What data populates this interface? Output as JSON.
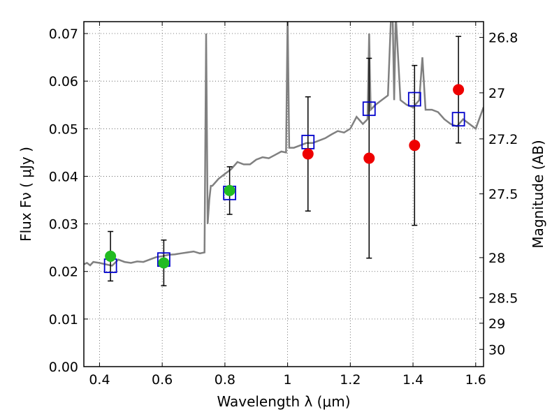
{
  "chart_data": {
    "type": "scatter",
    "xlabel": "Wavelength  λ (μm)",
    "ylabel": "Flux  Fν  ( μJy )",
    "ylabel_right": "Magnitude (AB)",
    "xlim": [
      0.35,
      1.625
    ],
    "ylim": [
      0.0,
      0.0725
    ],
    "grid": true,
    "x_ticks": [
      {
        "v": 0.4,
        "label": "0.4"
      },
      {
        "v": 0.6,
        "label": "0.6"
      },
      {
        "v": 0.8,
        "label": "0.8"
      },
      {
        "v": 1.0,
        "label": "1"
      },
      {
        "v": 1.2,
        "label": "1.2"
      },
      {
        "v": 1.4,
        "label": "1.4"
      },
      {
        "v": 1.6,
        "label": "1.6"
      }
    ],
    "y_ticks": [
      {
        "v": 0.0,
        "label": "0.00"
      },
      {
        "v": 0.01,
        "label": "0.01"
      },
      {
        "v": 0.02,
        "label": "0.02"
      },
      {
        "v": 0.03,
        "label": "0.03"
      },
      {
        "v": 0.04,
        "label": "0.04"
      },
      {
        "v": 0.05,
        "label": "0.05"
      },
      {
        "v": 0.06,
        "label": "0.06"
      },
      {
        "v": 0.07,
        "label": "0.07"
      }
    ],
    "right_ticks": [
      {
        "label": "26.8",
        "mag": 26.8
      },
      {
        "label": "27",
        "mag": 27.0
      },
      {
        "label": "27.2",
        "mag": 27.2
      },
      {
        "label": "27.5",
        "mag": 27.5
      },
      {
        "label": "28",
        "mag": 28.0
      },
      {
        "label": "28.5",
        "mag": 28.5
      },
      {
        "label": "29",
        "mag": 29.0
      },
      {
        "label": "30",
        "mag": 30.0
      }
    ],
    "series": [
      {
        "kind": "line",
        "color": "#808080",
        "x": [
          0.35,
          0.36,
          0.37,
          0.38,
          0.4,
          0.42,
          0.44,
          0.46,
          0.48,
          0.5,
          0.52,
          0.54,
          0.56,
          0.58,
          0.6,
          0.62,
          0.64,
          0.66,
          0.68,
          0.7,
          0.72,
          0.735,
          0.74,
          0.745,
          0.75,
          0.755,
          0.76,
          0.78,
          0.8,
          0.82,
          0.84,
          0.86,
          0.88,
          0.9,
          0.92,
          0.94,
          0.96,
          0.98,
          0.995,
          1.0,
          1.005,
          1.02,
          1.04,
          1.06,
          1.08,
          1.1,
          1.12,
          1.14,
          1.16,
          1.18,
          1.2,
          1.22,
          1.24,
          1.255,
          1.26,
          1.265,
          1.28,
          1.3,
          1.32,
          1.33,
          1.335,
          1.34,
          1.345,
          1.36,
          1.38,
          1.4,
          1.42,
          1.43,
          1.44,
          1.46,
          1.48,
          1.5,
          1.52,
          1.54,
          1.56,
          1.58,
          1.6,
          1.625
        ],
        "y": [
          0.0215,
          0.0218,
          0.0213,
          0.022,
          0.0218,
          0.0215,
          0.0212,
          0.0225,
          0.022,
          0.0218,
          0.0221,
          0.022,
          0.0225,
          0.023,
          0.0232,
          0.0235,
          0.0236,
          0.0238,
          0.024,
          0.0242,
          0.0238,
          0.024,
          0.07,
          0.03,
          0.035,
          0.038,
          0.038,
          0.0395,
          0.0405,
          0.0415,
          0.043,
          0.0425,
          0.0425,
          0.0435,
          0.044,
          0.0438,
          0.0445,
          0.0452,
          0.045,
          0.074,
          0.046,
          0.046,
          0.0465,
          0.047,
          0.047,
          0.0475,
          0.048,
          0.0488,
          0.0495,
          0.0492,
          0.05,
          0.0525,
          0.051,
          0.052,
          0.07,
          0.054,
          0.055,
          0.056,
          0.057,
          0.074,
          0.074,
          0.056,
          0.074,
          0.056,
          0.055,
          0.0545,
          0.056,
          0.065,
          0.054,
          0.054,
          0.0535,
          0.052,
          0.051,
          0.0505,
          0.052,
          0.051,
          0.05,
          0.0545
        ]
      },
      {
        "kind": "points",
        "marker": "square",
        "color": "#0000cc",
        "x": [
          0.435,
          0.605,
          0.815,
          1.065,
          1.26,
          1.405,
          1.545
        ],
        "y": [
          0.0212,
          0.0225,
          0.0365,
          0.0472,
          0.0542,
          0.0562,
          0.052
        ]
      },
      {
        "kind": "points",
        "marker": "circle",
        "color": "#22bb22",
        "x": [
          0.435,
          0.605,
          0.815
        ],
        "y": [
          0.0232,
          0.0218,
          0.037
        ],
        "yerr": [
          0.0052,
          0.0048,
          0.005
        ]
      },
      {
        "kind": "points",
        "marker": "circle",
        "color": "#ee0000",
        "x": [
          1.065,
          1.26,
          1.405,
          1.545
        ],
        "y": [
          0.0447,
          0.0438,
          0.0465,
          0.0582
        ],
        "yerr": [
          0.012,
          0.021,
          0.0168,
          0.0112
        ]
      }
    ]
  }
}
